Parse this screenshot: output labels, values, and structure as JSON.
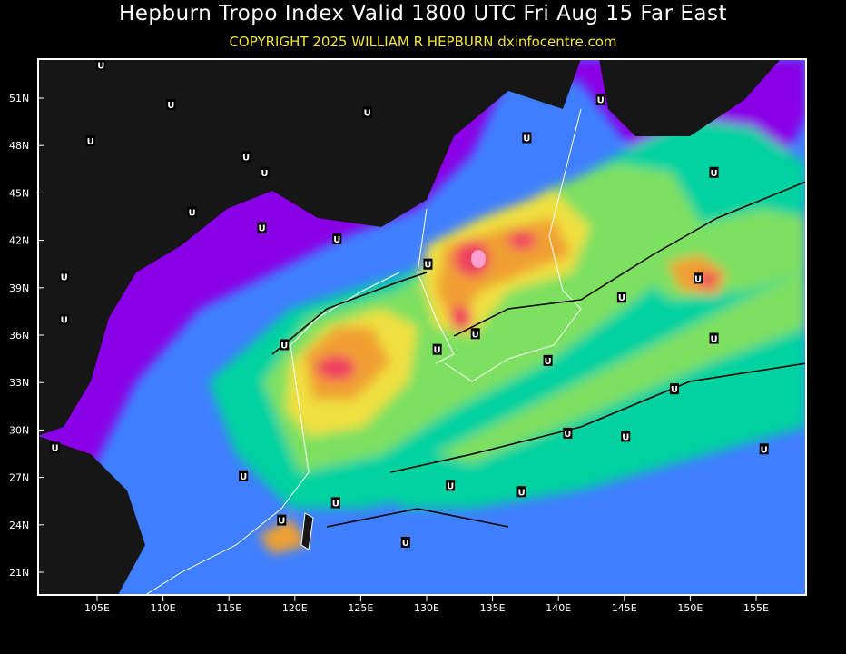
{
  "header": {
    "title": "Hepburn Tropo Index Valid 1800 UTC Fri Aug 15 Far East",
    "subtitle": "COPYRIGHT 2025   WILLIAM R HEPBURN   dxinfocentre.com"
  },
  "map": {
    "region": "Far East",
    "projection": "lat-lon",
    "lon_range": [
      100.6,
      159.0
    ],
    "lat_range": [
      19.6,
      53.5
    ],
    "lat_labels": [
      "51N",
      "48N",
      "45N",
      "42N",
      "39N",
      "36N",
      "33N",
      "30N",
      "27N",
      "24N",
      "21N"
    ],
    "lat_values": [
      51,
      48,
      45,
      42,
      39,
      36,
      33,
      30,
      27,
      24,
      21
    ],
    "lon_labels": [
      "105E",
      "110E",
      "115E",
      "120E",
      "125E",
      "130E",
      "135E",
      "140E",
      "145E",
      "150E",
      "155E"
    ],
    "lon_values": [
      105,
      110,
      115,
      120,
      125,
      130,
      135,
      140,
      145,
      150,
      155
    ],
    "colors": {
      "land": "#161616",
      "index_low": "#8a00e6",
      "index_blue": "#3f7fff",
      "index_teal": "#00d2a0",
      "index_green": "#7ee060",
      "index_yellow": "#f0e040",
      "index_orange": "#f0a030",
      "index_red": "#f04060",
      "index_pink": "#ff9fd0",
      "coastline": "#ffffff",
      "frame": "#ffffff"
    },
    "marker_symbol": "U",
    "markers": [
      [
        105.3,
        53.1
      ],
      [
        110.6,
        50.6
      ],
      [
        104.5,
        48.3
      ],
      [
        125.5,
        50.1
      ],
      [
        137.6,
        48.5
      ],
      [
        143.2,
        50.9
      ],
      [
        116.3,
        47.3
      ],
      [
        117.7,
        46.3
      ],
      [
        112.2,
        43.8
      ],
      [
        117.5,
        42.8
      ],
      [
        123.2,
        42.1
      ],
      [
        151.8,
        46.3
      ],
      [
        130.1,
        40.5
      ],
      [
        102.5,
        39.7
      ],
      [
        150.6,
        39.6
      ],
      [
        144.8,
        38.4
      ],
      [
        102.5,
        37.0
      ],
      [
        119.2,
        35.4
      ],
      [
        133.7,
        36.1
      ],
      [
        130.8,
        35.1
      ],
      [
        151.8,
        35.8
      ],
      [
        139.2,
        34.4
      ],
      [
        148.8,
        32.6
      ],
      [
        140.7,
        29.8
      ],
      [
        145.1,
        29.6
      ],
      [
        101.8,
        28.9
      ],
      [
        155.6,
        28.8
      ],
      [
        116.1,
        27.1
      ],
      [
        131.8,
        26.5
      ],
      [
        137.2,
        26.1
      ],
      [
        123.1,
        25.4
      ],
      [
        119.0,
        24.3
      ],
      [
        128.4,
        22.9
      ]
    ]
  }
}
